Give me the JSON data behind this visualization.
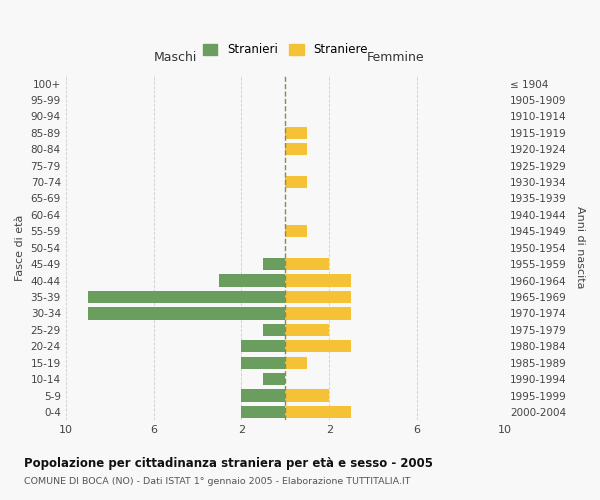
{
  "age_groups": [
    "0-4",
    "5-9",
    "10-14",
    "15-19",
    "20-24",
    "25-29",
    "30-34",
    "35-39",
    "40-44",
    "45-49",
    "50-54",
    "55-59",
    "60-64",
    "65-69",
    "70-74",
    "75-79",
    "80-84",
    "85-89",
    "90-94",
    "95-99",
    "100+"
  ],
  "birth_years": [
    "2000-2004",
    "1995-1999",
    "1990-1994",
    "1985-1989",
    "1980-1984",
    "1975-1979",
    "1970-1974",
    "1965-1969",
    "1960-1964",
    "1955-1959",
    "1950-1954",
    "1945-1949",
    "1940-1944",
    "1935-1939",
    "1930-1934",
    "1925-1929",
    "1920-1924",
    "1915-1919",
    "1910-1914",
    "1905-1909",
    "≤ 1904"
  ],
  "maschi": [
    2,
    2,
    1,
    2,
    2,
    1,
    9,
    9,
    3,
    1,
    0,
    0,
    0,
    0,
    0,
    0,
    0,
    0,
    0,
    0,
    0
  ],
  "femmine": [
    3,
    2,
    0,
    1,
    3,
    2,
    3,
    3,
    3,
    2,
    0,
    1,
    0,
    0,
    1,
    0,
    1,
    1,
    0,
    0,
    0
  ],
  "color_maschi": "#6a9e5e",
  "color_femmine": "#f5c136",
  "color_center_line": "#8b8b4e",
  "title": "Popolazione per cittadinanza straniera per età e sesso - 2005",
  "subtitle": "COMUNE DI BOCA (NO) - Dati ISTAT 1° gennaio 2005 - Elaborazione TUTTITALIA.IT",
  "xlabel_left": "Maschi",
  "xlabel_right": "Femmine",
  "ylabel_left": "Fasce di età",
  "ylabel_right": "Anni di nascita",
  "legend_maschi": "Stranieri",
  "legend_femmine": "Straniere",
  "xlim": 10,
  "background_color": "#f8f8f8",
  "grid_color": "#cccccc"
}
